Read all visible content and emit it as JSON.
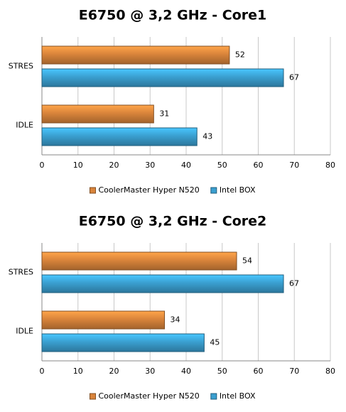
{
  "chart_data": [
    {
      "type": "bar",
      "orientation": "horizontal",
      "title": "E6750 @ 3,2 GHz - Core1",
      "categories": [
        "STRES",
        "IDLE"
      ],
      "series": [
        {
          "name": "CoolerMaster Hyper N520",
          "color": "#d9843b",
          "values": [
            52,
            31
          ]
        },
        {
          "name": "Intel BOX",
          "color": "#3a9fd0",
          "values": [
            67,
            43
          ]
        }
      ],
      "xlim": [
        0,
        80
      ],
      "xticks": [
        0,
        10,
        20,
        30,
        40,
        50,
        60,
        70,
        80
      ],
      "grid": true,
      "legend": "bottom"
    },
    {
      "type": "bar",
      "orientation": "horizontal",
      "title": "E6750 @ 3,2 GHz - Core2",
      "categories": [
        "STRES",
        "IDLE"
      ],
      "series": [
        {
          "name": "CoolerMaster Hyper N520",
          "color": "#d9843b",
          "values": [
            54,
            34
          ]
        },
        {
          "name": "Intel BOX",
          "color": "#3a9fd0",
          "values": [
            67,
            45
          ]
        }
      ],
      "xlim": [
        0,
        80
      ],
      "xticks": [
        0,
        10,
        20,
        30,
        40,
        50,
        60,
        70,
        80
      ],
      "grid": true,
      "legend": "bottom"
    }
  ]
}
